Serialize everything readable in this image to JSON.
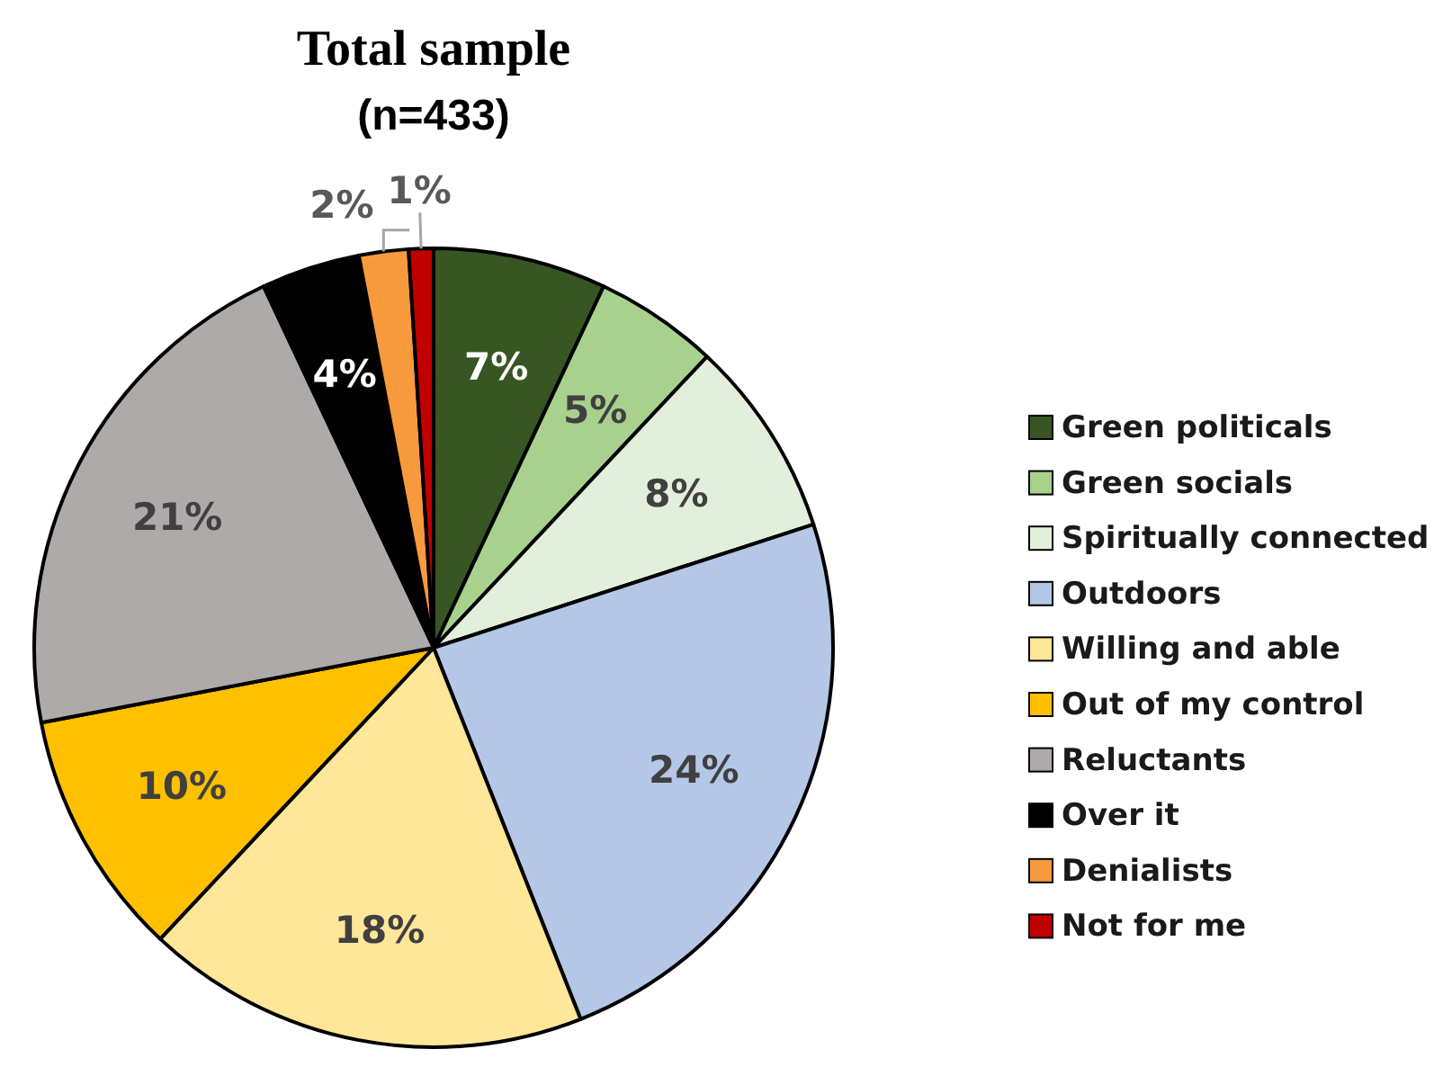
{
  "chart_data": {
    "type": "pie",
    "title": "Total sample",
    "subtitle": "(n=433)",
    "categories": [
      "Green politicals",
      "Green socials",
      "Spiritually connected",
      "Outdoors",
      "Willing and able",
      "Out of my control",
      "Reluctants",
      "Over it",
      "Denialists",
      "Not for me"
    ],
    "values": [
      7,
      5,
      8,
      24,
      18,
      10,
      21,
      4,
      2,
      1
    ],
    "colors": [
      "#375623",
      "#a9d18e",
      "#e2efda",
      "#b4c7e7",
      "#ffe699",
      "#ffc000",
      "#aeaaaa",
      "#000000",
      "#f79a3e",
      "#c00000"
    ],
    "value_labels": [
      "7%",
      "5%",
      "8%",
      "24%",
      "18%",
      "10%",
      "21%",
      "4%",
      "2%",
      "1%"
    ],
    "legend": "right"
  }
}
